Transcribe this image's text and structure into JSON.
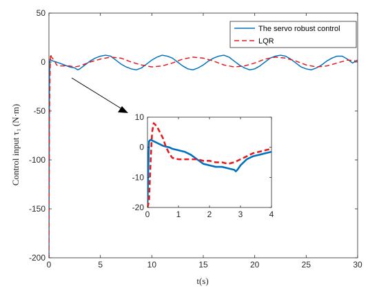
{
  "chart_data": {
    "type": "line",
    "xlabel": "t(s)",
    "ylabel": "Control input τ₁ (N·m)",
    "xlim": [
      0,
      30
    ],
    "ylim": [
      -200,
      50
    ],
    "x_ticks": [
      0,
      5,
      10,
      15,
      20,
      25,
      30
    ],
    "y_ticks": [
      50,
      0,
      -50,
      -100,
      -150,
      -200
    ],
    "grid": false,
    "legend_position": "top-right",
    "series": [
      {
        "name": "The servo robust control",
        "color": "#0072BD",
        "style": "solid",
        "x": [
          0,
          0.05,
          0.1,
          0.2,
          0.4,
          0.7,
          1.0,
          1.5,
          2.0,
          2.5,
          2.8,
          3.0,
          3.5,
          4.0,
          4.5,
          5.0,
          5.5,
          6.0,
          6.5,
          7.0,
          7.5,
          8.0,
          8.5,
          9.0,
          9.5,
          10.0,
          10.5,
          11.0,
          11.5,
          12.0,
          12.5,
          13.0,
          13.5,
          14.0,
          14.5,
          15.0,
          15.5,
          16.0,
          16.5,
          17.0,
          17.5,
          18.0,
          18.5,
          19.0,
          19.5,
          20.0,
          20.5,
          21.0,
          21.5,
          22.0,
          22.5,
          23.0,
          23.5,
          24.0,
          24.5,
          25.0,
          25.5,
          26.0,
          26.5,
          27.0,
          27.5,
          28.0,
          28.5,
          29.0,
          29.5,
          30.0
        ],
        "values": [
          -200,
          -20,
          3,
          2,
          1,
          0,
          -1,
          -3,
          -5,
          -6,
          -8,
          -7,
          -3,
          1,
          4,
          6,
          7,
          6,
          2,
          -2,
          -5,
          -7,
          -8,
          -6,
          -2,
          2,
          5,
          7,
          6,
          4,
          0,
          -4,
          -7,
          -8,
          -6,
          -3,
          1,
          4,
          6,
          7,
          5,
          1,
          -3,
          -6,
          -8,
          -7,
          -4,
          0,
          4,
          6,
          7,
          6,
          3,
          -1,
          -5,
          -7,
          -8,
          -6,
          -3,
          1,
          4,
          6,
          6,
          3,
          -1,
          2
        ]
      },
      {
        "name": "LQR",
        "color": "#E41A1C",
        "style": "dashed",
        "x": [
          0,
          0.05,
          0.1,
          0.15,
          0.25,
          0.5,
          0.75,
          1.0,
          1.5,
          2.0,
          2.5,
          3.0,
          3.5,
          4.0,
          5.0,
          6.0,
          7.0,
          8.0,
          9.0,
          10.0,
          11.0,
          12.0,
          13.0,
          14.0,
          15.0,
          16.0,
          17.0,
          18.0,
          19.0,
          20.0,
          21.0,
          22.0,
          23.0,
          24.0,
          25.0,
          26.0,
          27.0,
          28.0,
          29.0,
          30.0
        ],
        "values": [
          -200,
          -60,
          -20,
          8,
          5,
          2,
          -3,
          -4,
          -4,
          -4,
          -5,
          -4,
          -2,
          0,
          3,
          5,
          4,
          0,
          -3,
          -5,
          -4,
          -1,
          3,
          5,
          4,
          1,
          -3,
          -5,
          -4,
          -1,
          3,
          5,
          4,
          1,
          -3,
          -5,
          -4,
          -1,
          2,
          1
        ]
      }
    ],
    "inset": {
      "xlim": [
        0,
        4
      ],
      "ylim": [
        -20,
        10
      ],
      "x_ticks": [
        0,
        1,
        2,
        3,
        4
      ],
      "y_ticks": [
        10,
        0,
        -10,
        -20
      ],
      "series": [
        {
          "name": "The servo robust control",
          "x": [
            0,
            0.02,
            0.05,
            0.1,
            0.2,
            0.3,
            0.4,
            0.5,
            0.6,
            0.7,
            0.8,
            1.0,
            1.2,
            1.4,
            1.6,
            1.8,
            2.0,
            2.2,
            2.4,
            2.6,
            2.8,
            2.85,
            2.9,
            3.0,
            3.2,
            3.4,
            3.6,
            3.8,
            4.0
          ],
          "values": [
            -20,
            -10,
            2,
            2.5,
            2,
            1.5,
            1,
            0.5,
            0.2,
            0,
            -0.5,
            -1,
            -1.5,
            -2.5,
            -4,
            -5.5,
            -6,
            -6.5,
            -6.5,
            -7,
            -7.5,
            -8,
            -7.5,
            -6,
            -4,
            -3,
            -2.5,
            -2,
            -1.5
          ]
        },
        {
          "name": "LQR",
          "x": [
            0,
            0.05,
            0.1,
            0.15,
            0.2,
            0.3,
            0.4,
            0.5,
            0.6,
            0.7,
            0.8,
            1.0,
            1.2,
            1.4,
            1.6,
            1.8,
            2.0,
            2.2,
            2.4,
            2.6,
            2.8,
            3.0,
            3.2,
            3.4,
            3.6,
            3.8,
            4.0
          ],
          "values": [
            -20,
            -18,
            -5,
            5,
            8,
            7,
            5,
            3,
            0,
            -2,
            -3.5,
            -4,
            -4,
            -4,
            -4,
            -4.5,
            -4.5,
            -5,
            -5,
            -5.5,
            -5,
            -4,
            -3,
            -2,
            -1.5,
            -1,
            -0.5
          ]
        }
      ]
    }
  }
}
